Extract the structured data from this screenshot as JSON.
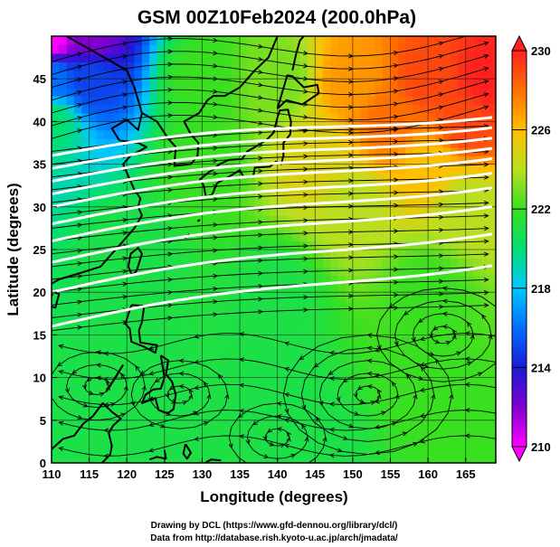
{
  "chart_data": {
    "type": "heatmap",
    "title": "GSM 00Z10Feb2024 (200.0hPa)",
    "xlabel": "Longitude (degrees)",
    "ylabel": "Latitude  (degrees)",
    "xlim": [
      110,
      169
    ],
    "ylim": [
      0,
      50
    ],
    "x_ticks": [
      110,
      115,
      120,
      125,
      130,
      135,
      140,
      145,
      150,
      155,
      160,
      165
    ],
    "y_ticks": [
      0,
      5,
      10,
      15,
      20,
      25,
      30,
      35,
      40,
      45
    ],
    "colorbar": {
      "min": 210,
      "max": 230,
      "ticks": [
        210,
        214,
        218,
        222,
        226,
        230
      ]
    },
    "colorscale": [
      [
        210,
        "#ff00ff"
      ],
      [
        212,
        "#8000d0"
      ],
      [
        214,
        "#1a1ad8"
      ],
      [
        216,
        "#0070ff"
      ],
      [
        218,
        "#00c8ff"
      ],
      [
        220,
        "#00e070"
      ],
      [
        222,
        "#38e020"
      ],
      [
        224,
        "#b8e020"
      ],
      [
        226,
        "#ffc000"
      ],
      [
        228,
        "#ff7000"
      ],
      [
        230,
        "#ff2020"
      ]
    ],
    "series": [
      {
        "values": [
          {
            "lon": 110,
            "lat": 50,
            "value": 210
          },
          {
            "lon": 115,
            "lat": 50,
            "value": 212
          },
          {
            "lon": 110,
            "lat": 45,
            "value": 216
          },
          {
            "lon": 115,
            "lat": 45,
            "value": 215
          },
          {
            "lon": 110,
            "lat": 40,
            "value": 220
          },
          {
            "lon": 130,
            "lat": 45,
            "value": 222
          },
          {
            "lon": 140,
            "lat": 45,
            "value": 223
          },
          {
            "lon": 150,
            "lat": 45,
            "value": 227
          },
          {
            "lon": 160,
            "lat": 45,
            "value": 229
          },
          {
            "lon": 168,
            "lat": 45,
            "value": 230
          },
          {
            "lon": 155,
            "lat": 40,
            "value": 228
          },
          {
            "lon": 165,
            "lat": 40,
            "value": 229
          },
          {
            "lon": 145,
            "lat": 35,
            "value": 225
          },
          {
            "lon": 160,
            "lat": 35,
            "value": 226
          },
          {
            "lon": 150,
            "lat": 30,
            "value": 224
          },
          {
            "lon": 165,
            "lat": 30,
            "value": 224
          },
          {
            "lon": 130,
            "lat": 35,
            "value": 222
          },
          {
            "lon": 120,
            "lat": 25,
            "value": 221
          },
          {
            "lon": 140,
            "lat": 20,
            "value": 221
          },
          {
            "lon": 160,
            "lat": 20,
            "value": 222
          },
          {
            "lon": 120,
            "lat": 10,
            "value": 221
          },
          {
            "lon": 140,
            "lat": 10,
            "value": 221
          },
          {
            "lon": 160,
            "lat": 10,
            "value": 222
          },
          {
            "lon": 120,
            "lat": 2,
            "value": 221
          },
          {
            "lon": 145,
            "lat": 2,
            "value": 221
          },
          {
            "lon": 165,
            "lat": 2,
            "value": 222
          }
        ]
      }
    ],
    "jet_streamlines_lat": [
      38.5,
      37,
      35.5,
      34,
      32.5,
      30.5,
      28.5,
      26,
      22.5,
      18.5
    ],
    "footer": [
      "Drawing by DCL (https://www.gfd-dennou.org/library/dcl/)",
      "Data from http://database.rish.kyoto-u.ac.jp/arch/jmadata/"
    ]
  }
}
